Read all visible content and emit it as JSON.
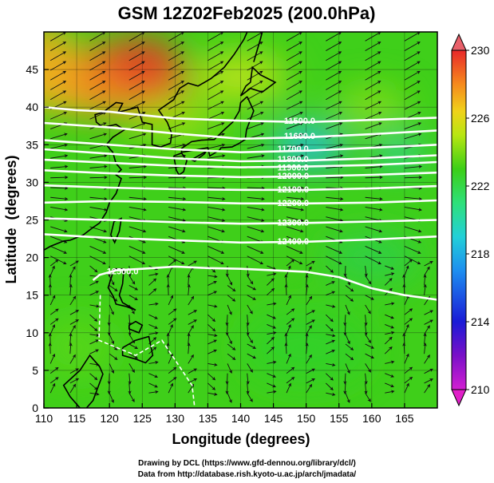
{
  "chart_data": {
    "type": "heatmap",
    "title": "GSM 12Z02Feb2025 (200.0hPa)",
    "xlabel": "Longitude (degrees)",
    "ylabel": "Latitude  (degrees)",
    "xlim": [
      110,
      170
    ],
    "ylim": [
      0,
      50
    ],
    "x_ticks": [
      "110",
      "115",
      "120",
      "125",
      "130",
      "135",
      "140",
      "145",
      "150",
      "155",
      "160",
      "165"
    ],
    "y_ticks": [
      "0",
      "5",
      "10",
      "15",
      "20",
      "25",
      "30",
      "35",
      "40",
      "45"
    ],
    "colorbar": {
      "min": 210,
      "max": 230,
      "ticks": [
        "210",
        "214",
        "218",
        "222",
        "226",
        "230"
      ]
    },
    "temperature_centers": [
      {
        "name": "warm core",
        "lon": 123,
        "lat": 43,
        "value": 228
      },
      {
        "name": "cool core",
        "lon": 151,
        "lat": 35,
        "value": 219
      },
      {
        "name": "cool spot",
        "lon": 164,
        "lat": 34,
        "value": 220
      }
    ],
    "contours": [
      {
        "value": 11500,
        "label": "11500.0",
        "points": [
          [
            110,
            40
          ],
          [
            115,
            39.6
          ],
          [
            120,
            39.4
          ],
          [
            130,
            38.5
          ],
          [
            140,
            38.2
          ],
          [
            150,
            38
          ],
          [
            160,
            38.3
          ],
          [
            170,
            38.6
          ]
        ]
      },
      {
        "value": 11600,
        "label": "11600.0",
        "points": [
          [
            110,
            37.9
          ],
          [
            120,
            37.3
          ],
          [
            130,
            36.5
          ],
          [
            140,
            35.8
          ],
          [
            150,
            36
          ],
          [
            160,
            36.4
          ],
          [
            170,
            36.9
          ]
        ]
      },
      {
        "value": 11700,
        "label": "11700.0",
        "points": [
          [
            110,
            35.6
          ],
          [
            120,
            35
          ],
          [
            130,
            34.4
          ],
          [
            140,
            34
          ],
          [
            150,
            34.2
          ],
          [
            160,
            34.6
          ],
          [
            170,
            35
          ]
        ]
      },
      {
        "value": 11800,
        "label": "11800.0",
        "points": [
          [
            110,
            34.4
          ],
          [
            120,
            33.8
          ],
          [
            130,
            33.2
          ],
          [
            140,
            32.8
          ],
          [
            150,
            32.9
          ],
          [
            160,
            33.2
          ],
          [
            170,
            33.6
          ]
        ]
      },
      {
        "value": 11900,
        "label": "11900.0",
        "points": [
          [
            110,
            33
          ],
          [
            120,
            32.6
          ],
          [
            130,
            32.2
          ],
          [
            140,
            32
          ],
          [
            150,
            32.1
          ],
          [
            160,
            32.3
          ],
          [
            170,
            32.7
          ]
        ]
      },
      {
        "value": 12000,
        "label": "12000.0",
        "points": [
          [
            110,
            31.6
          ],
          [
            120,
            31.2
          ],
          [
            130,
            30.9
          ],
          [
            140,
            30.7
          ],
          [
            150,
            30.8
          ],
          [
            160,
            31
          ],
          [
            170,
            31.3
          ]
        ]
      },
      {
        "value": 12100,
        "label": "12100.0",
        "points": [
          [
            110,
            29.6
          ],
          [
            120,
            29.3
          ],
          [
            130,
            29.1
          ],
          [
            140,
            29
          ],
          [
            150,
            29
          ],
          [
            160,
            29.2
          ],
          [
            170,
            29.5
          ]
        ]
      },
      {
        "value": 12200,
        "label": "12200.0",
        "points": [
          [
            110,
            27.3
          ],
          [
            120,
            27.5
          ],
          [
            130,
            27.4
          ],
          [
            140,
            27.2
          ],
          [
            150,
            27.2
          ],
          [
            160,
            27.3
          ],
          [
            170,
            27.6
          ]
        ]
      },
      {
        "value": 12300,
        "label": "12300.0",
        "points": [
          [
            110,
            25.2
          ],
          [
            120,
            25
          ],
          [
            130,
            24.7
          ],
          [
            140,
            24.5
          ],
          [
            150,
            24.6
          ],
          [
            160,
            24.8
          ],
          [
            170,
            25
          ]
        ]
      },
      {
        "value": 12400,
        "label": "12400.0",
        "points": [
          [
            110,
            23.1
          ],
          [
            120,
            22.6
          ],
          [
            130,
            22.3
          ],
          [
            140,
            22
          ],
          [
            150,
            22.1
          ],
          [
            160,
            22.4
          ],
          [
            170,
            22.8
          ]
        ]
      },
      {
        "value": 12500,
        "label": "12500.0",
        "points": [
          [
            117.5,
            17
          ],
          [
            118.5,
            17.7
          ],
          [
            121,
            18.3
          ],
          [
            125,
            18.5
          ],
          [
            130,
            18.8
          ],
          [
            135,
            18.6
          ],
          [
            140,
            18.5
          ],
          [
            145,
            18.3
          ],
          [
            150,
            18.1
          ],
          [
            155,
            17.4
          ],
          [
            160,
            15.9
          ],
          [
            165,
            15
          ],
          [
            170,
            14.4
          ]
        ]
      }
    ],
    "contour_labels": [
      {
        "text": "11500.0",
        "lon": 149,
        "lat": 38.2
      },
      {
        "text": "11600.0",
        "lon": 149,
        "lat": 36.2
      },
      {
        "text": "11700.0",
        "lon": 148,
        "lat": 34.5
      },
      {
        "text": "11800.0",
        "lon": 148,
        "lat": 33.1
      },
      {
        "text": "11900.0",
        "lon": 148,
        "lat": 32.0
      },
      {
        "text": "12000.0",
        "lon": 148,
        "lat": 30.9
      },
      {
        "text": "12100.0",
        "lon": 148,
        "lat": 29.1
      },
      {
        "text": "12200.0",
        "lon": 148,
        "lat": 27.3
      },
      {
        "text": "12300.0",
        "lon": 148,
        "lat": 24.7
      },
      {
        "text": "12400.0",
        "lon": 148,
        "lat": 22.2
      },
      {
        "text": "12500.0",
        "lon": 122,
        "lat": 18.2
      }
    ]
  },
  "footer": {
    "line1": "Drawing by DCL (https://www.gfd-dennou.org/library/dcl/)",
    "line2": "Data from http://database.rish.kyoto-u.ac.jp/arch/jmadata/"
  },
  "colors": {
    "warm": "#e8442a",
    "mid": "#3fcf1a",
    "cool": "#22c8d8",
    "contour": "#ffffff",
    "streamline": "#111111",
    "coast": "#000000"
  }
}
